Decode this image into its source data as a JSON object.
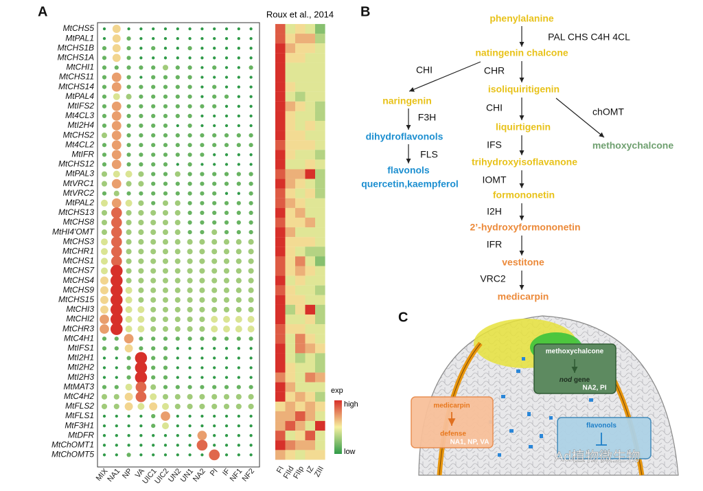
{
  "panel_a": {
    "label": "A",
    "heatmap_title": "Roux et al., 2014",
    "genes": [
      "MtCHS5",
      "MtPAL1",
      "MtCHS1B",
      "MtCHS1A",
      "MtCHI1",
      "MtCHS11",
      "MtCHS14",
      "MtPAL4",
      "MtIFS2",
      "Mt4CL3",
      "MtI2H4",
      "MtCHS2",
      "Mt4CL2",
      "MtIFR",
      "MtCHS12",
      "MtPAL3",
      "MtVRC1",
      "MtVRC2",
      "MtPAL2",
      "MtCHS13",
      "MtCHS8",
      "MtHI4'OMT",
      "MtCHS3",
      "MtCHR1",
      "MtCHS1",
      "MtCHS7",
      "MtCHS4",
      "MtCHS9",
      "MtCHS15",
      "MtCHI3",
      "MtCHI2",
      "MtCHR3",
      "MtC4H1",
      "MtIFS1",
      "MtI2H1",
      "MtI2H2",
      "MtI2H3",
      "MtMAT3",
      "MtC4H2",
      "MtFLS2",
      "MtFLS1",
      "MtF3H1",
      "MtDFR",
      "MtChOMT1",
      "MtChOMT5"
    ],
    "samples": [
      "MIX",
      "NA1",
      "NP",
      "VA",
      "UIC1",
      "UIC2",
      "UN2",
      "UN1",
      "NA2",
      "PI",
      "IF",
      "NF1",
      "NF2"
    ],
    "dot_values": [
      [
        1,
        5,
        1,
        1,
        1,
        1,
        1,
        1,
        1,
        1,
        1,
        1,
        1
      ],
      [
        1,
        5,
        2,
        1,
        1,
        1,
        1,
        1,
        1,
        1,
        1,
        1,
        1
      ],
      [
        2,
        5,
        2,
        1,
        2,
        1,
        1,
        2,
        1,
        1,
        1,
        1,
        1
      ],
      [
        2,
        5,
        2,
        1,
        1,
        1,
        1,
        1,
        1,
        1,
        1,
        1,
        1
      ],
      [
        2,
        2,
        2,
        2,
        2,
        3,
        2,
        2,
        1,
        2,
        1,
        1,
        2
      ],
      [
        2,
        6,
        2,
        1,
        2,
        2,
        2,
        2,
        1,
        1,
        1,
        1,
        1
      ],
      [
        2,
        6,
        2,
        2,
        2,
        2,
        2,
        2,
        1,
        2,
        1,
        1,
        1
      ],
      [
        2,
        4,
        3,
        2,
        2,
        2,
        2,
        2,
        1,
        2,
        2,
        1,
        1
      ],
      [
        2,
        6,
        2,
        2,
        2,
        2,
        2,
        2,
        2,
        2,
        1,
        1,
        1
      ],
      [
        2,
        6,
        2,
        2,
        2,
        2,
        2,
        2,
        1,
        1,
        1,
        1,
        1
      ],
      [
        2,
        6,
        2,
        2,
        2,
        2,
        1,
        2,
        1,
        1,
        1,
        1,
        1
      ],
      [
        3,
        6,
        2,
        2,
        2,
        2,
        2,
        2,
        2,
        2,
        2,
        2,
        2
      ],
      [
        2,
        6,
        2,
        2,
        2,
        2,
        2,
        2,
        2,
        2,
        2,
        2,
        2
      ],
      [
        2,
        6,
        2,
        2,
        2,
        2,
        2,
        2,
        2,
        1,
        1,
        1,
        1
      ],
      [
        2,
        6,
        2,
        2,
        2,
        2,
        1,
        2,
        1,
        1,
        1,
        1,
        1
      ],
      [
        3,
        4,
        4,
        3,
        2,
        2,
        3,
        2,
        2,
        2,
        2,
        2,
        2
      ],
      [
        3,
        6,
        3,
        3,
        2,
        2,
        2,
        2,
        2,
        2,
        2,
        2,
        2
      ],
      [
        2,
        3,
        2,
        2,
        2,
        2,
        2,
        2,
        2,
        2,
        1,
        1,
        2
      ],
      [
        4,
        6,
        4,
        3,
        2,
        3,
        3,
        2,
        2,
        2,
        2,
        2,
        2
      ],
      [
        3,
        7,
        3,
        3,
        3,
        3,
        3,
        2,
        2,
        2,
        2,
        2,
        2
      ],
      [
        3,
        7,
        3,
        3,
        3,
        3,
        3,
        2,
        2,
        2,
        2,
        2,
        2
      ],
      [
        3,
        7,
        3,
        3,
        3,
        3,
        3,
        2,
        2,
        3,
        2,
        2,
        2
      ],
      [
        4,
        7,
        3,
        3,
        3,
        3,
        3,
        3,
        3,
        3,
        3,
        3,
        3
      ],
      [
        4,
        7,
        3,
        3,
        3,
        3,
        3,
        3,
        3,
        3,
        3,
        3,
        3
      ],
      [
        4,
        7,
        3,
        3,
        3,
        3,
        3,
        3,
        3,
        3,
        3,
        3,
        3
      ],
      [
        4,
        8,
        3,
        3,
        3,
        3,
        3,
        3,
        3,
        3,
        3,
        3,
        3
      ],
      [
        5,
        8,
        3,
        3,
        3,
        3,
        3,
        3,
        3,
        3,
        3,
        3,
        3
      ],
      [
        5,
        8,
        4,
        3,
        3,
        3,
        3,
        3,
        3,
        3,
        3,
        3,
        3
      ],
      [
        5,
        8,
        4,
        3,
        3,
        3,
        3,
        3,
        3,
        3,
        3,
        3,
        3
      ],
      [
        5,
        8,
        4,
        4,
        3,
        3,
        3,
        3,
        3,
        3,
        3,
        3,
        3
      ],
      [
        6,
        8,
        4,
        4,
        3,
        3,
        3,
        3,
        3,
        4,
        4,
        4,
        4
      ],
      [
        6,
        8,
        4,
        4,
        3,
        3,
        3,
        3,
        3,
        4,
        4,
        4,
        4
      ],
      [
        2,
        2,
        6,
        2,
        2,
        2,
        2,
        2,
        2,
        2,
        2,
        2,
        2
      ],
      [
        2,
        2,
        5,
        2,
        2,
        2,
        1,
        1,
        1,
        1,
        1,
        1,
        1
      ],
      [
        1,
        1,
        2,
        8,
        2,
        2,
        1,
        1,
        1,
        1,
        1,
        1,
        1
      ],
      [
        1,
        1,
        2,
        8,
        2,
        2,
        1,
        1,
        1,
        1,
        1,
        1,
        1
      ],
      [
        1,
        1,
        2,
        8,
        2,
        2,
        1,
        1,
        1,
        1,
        1,
        1,
        1
      ],
      [
        2,
        2,
        4,
        7,
        3,
        2,
        2,
        2,
        2,
        2,
        2,
        2,
        2
      ],
      [
        3,
        3,
        5,
        7,
        4,
        3,
        3,
        3,
        3,
        3,
        3,
        3,
        3
      ],
      [
        3,
        3,
        5,
        4,
        5,
        4,
        3,
        3,
        3,
        3,
        3,
        3,
        3
      ],
      [
        1,
        1,
        1,
        1,
        2,
        6,
        1,
        1,
        1,
        1,
        1,
        1,
        1
      ],
      [
        1,
        1,
        1,
        1,
        2,
        4,
        1,
        1,
        1,
        1,
        1,
        1,
        1
      ],
      [
        1,
        1,
        1,
        1,
        1,
        1,
        1,
        1,
        6,
        1,
        1,
        1,
        1
      ],
      [
        1,
        1,
        1,
        1,
        1,
        1,
        1,
        1,
        7,
        1,
        1,
        1,
        1
      ],
      [
        1,
        1,
        2,
        1,
        1,
        1,
        1,
        1,
        1,
        7,
        1,
        1,
        1
      ]
    ],
    "heatmap_zones": [
      "FI",
      "FIId",
      "FIIp",
      "IZ",
      "ZIII"
    ],
    "heatmap_values": [
      [
        8,
        4,
        5,
        4,
        2
      ],
      [
        8,
        5,
        6,
        6,
        3
      ],
      [
        9,
        6,
        5,
        5,
        4
      ],
      [
        9,
        5,
        5,
        4,
        4
      ],
      [
        9,
        4,
        4,
        4,
        4
      ],
      [
        9,
        4,
        4,
        4,
        4
      ],
      [
        9,
        5,
        4,
        4,
        4
      ],
      [
        9,
        4,
        3,
        4,
        4
      ],
      [
        9,
        6,
        5,
        4,
        3
      ],
      [
        9,
        5,
        4,
        4,
        3
      ],
      [
        9,
        5,
        4,
        5,
        4
      ],
      [
        9,
        5,
        5,
        4,
        4
      ],
      [
        8,
        5,
        5,
        5,
        4
      ],
      [
        9,
        5,
        4,
        4,
        3
      ],
      [
        9,
        4,
        4,
        5,
        4
      ],
      [
        8,
        6,
        6,
        9,
        3
      ],
      [
        9,
        6,
        5,
        4,
        3
      ],
      [
        8,
        5,
        4,
        5,
        3
      ],
      [
        8,
        6,
        5,
        4,
        4
      ],
      [
        9,
        5,
        6,
        4,
        4
      ],
      [
        8,
        5,
        5,
        6,
        4
      ],
      [
        9,
        6,
        4,
        4,
        4
      ],
      [
        9,
        5,
        5,
        5,
        4
      ],
      [
        9,
        5,
        4,
        3,
        3
      ],
      [
        8,
        5,
        7,
        4,
        2
      ],
      [
        8,
        5,
        6,
        5,
        4
      ],
      [
        9,
        4,
        5,
        4,
        4
      ],
      [
        8,
        5,
        4,
        4,
        3
      ],
      [
        9,
        5,
        5,
        4,
        4
      ],
      [
        9,
        3,
        5,
        9,
        3
      ],
      [
        9,
        4,
        4,
        5,
        3
      ],
      [
        8,
        5,
        5,
        4,
        4
      ],
      [
        8,
        4,
        7,
        5,
        4
      ],
      [
        9,
        4,
        7,
        6,
        5
      ],
      [
        9,
        4,
        3,
        4,
        3
      ],
      [
        9,
        5,
        4,
        4,
        3
      ],
      [
        7,
        5,
        4,
        7,
        6
      ],
      [
        9,
        6,
        4,
        4,
        4
      ],
      [
        9,
        5,
        6,
        5,
        3
      ],
      [
        5,
        6,
        5,
        6,
        5
      ],
      [
        6,
        6,
        8,
        6,
        4
      ],
      [
        6,
        8,
        6,
        4,
        9
      ],
      [
        8,
        4,
        5,
        8,
        4
      ],
      [
        9,
        7,
        6,
        6,
        4
      ],
      [
        6,
        5,
        4,
        5,
        5
      ]
    ],
    "legend": {
      "title": "exp",
      "high": "high",
      "low": "low"
    }
  },
  "panel_b": {
    "label": "B",
    "nodes": [
      {
        "label": "phenylalanine",
        "class": "Y"
      },
      {
        "label": "natingenin chalcone",
        "class": "Y"
      },
      {
        "label": "isoliquiritigenin",
        "class": "Y"
      },
      {
        "label": "naringenin",
        "class": "Y"
      },
      {
        "label": "liquirtigenin",
        "class": "Y"
      },
      {
        "label": "dihydroflavonols",
        "class": "B"
      },
      {
        "label": "methoxychalcone",
        "class": "G"
      },
      {
        "label": "trihydroxyisoflavanone",
        "class": "Y"
      },
      {
        "label": "flavonols",
        "class": "B"
      },
      {
        "label": "quercetin,kaempferol",
        "class": "B"
      },
      {
        "label": "formononetin",
        "class": "Y"
      },
      {
        "label": "2’-hydroxyformononetin",
        "class": "O"
      },
      {
        "label": "vestitone",
        "class": "O"
      },
      {
        "label": "medicarpin",
        "class": "O"
      }
    ],
    "enzymes": [
      "PAL CHS C4H 4CL",
      "CHI",
      "CHR",
      "F3H",
      "CHI",
      "chOMT",
      "IFS",
      "FLS",
      "IOMT",
      "I2H",
      "IFR",
      "VRC2"
    ]
  },
  "panel_c": {
    "label": "C",
    "boxes": [
      {
        "title": "methoxychalcone",
        "target_italic": "nod",
        "target": "gene",
        "samples": "NA2, PI"
      },
      {
        "title": "medicarpin",
        "target": "defense",
        "samples": "NA1, NP, VA"
      },
      {
        "title": "flavonols"
      }
    ],
    "watermark": "Ad植物微生物"
  }
}
